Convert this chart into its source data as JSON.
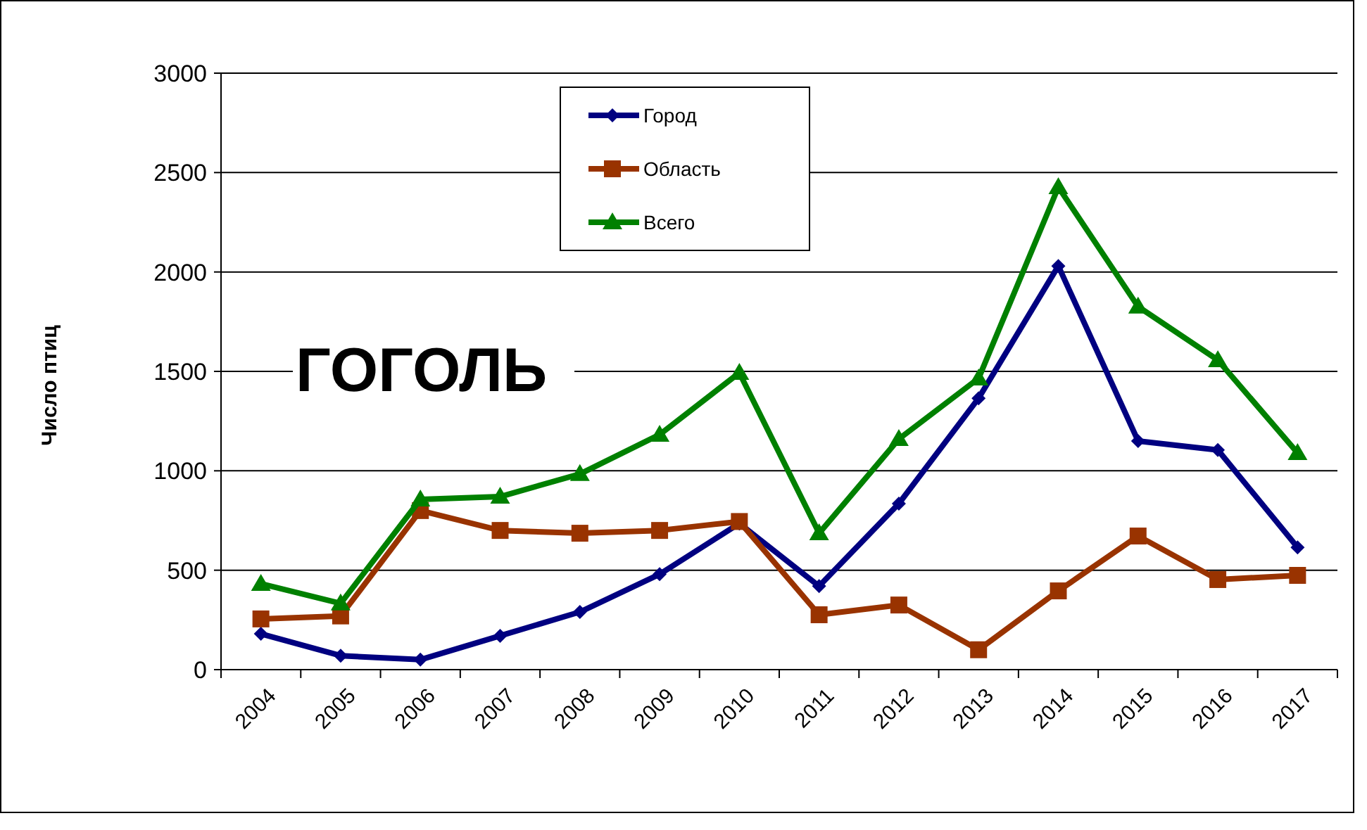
{
  "chart_data": {
    "type": "line",
    "title": "ГОГОЛЬ",
    "ylabel": "Число птиц",
    "categories": [
      "2004",
      "2005",
      "2006",
      "2007",
      "2008",
      "2009",
      "2010",
      "2011",
      "2012",
      "2013",
      "2014",
      "2015",
      "2016",
      "2017"
    ],
    "series": [
      {
        "name": "Город",
        "color": "#000080",
        "marker": "diamond",
        "values": [
          180,
          70,
          50,
          170,
          290,
          480,
          735,
          420,
          835,
          1365,
          2030,
          1150,
          1105,
          615
        ]
      },
      {
        "name": "Область",
        "color": "#993300",
        "marker": "square",
        "values": [
          255,
          270,
          800,
          700,
          686,
          700,
          745,
          276,
          325,
          100,
          396,
          672,
          453,
          474
        ]
      },
      {
        "name": "Всего",
        "color": "#008000",
        "marker": "triangle",
        "values": [
          432,
          333,
          856,
          870,
          984,
          1182,
          1493,
          686,
          1160,
          1465,
          2427,
          1826,
          1557,
          1090
        ]
      }
    ],
    "ylim": [
      0,
      3000
    ],
    "yticks": [
      0,
      500,
      1000,
      1500,
      2000,
      2500,
      3000
    ],
    "grid": "y",
    "legend": "top",
    "line_style": "solid"
  }
}
